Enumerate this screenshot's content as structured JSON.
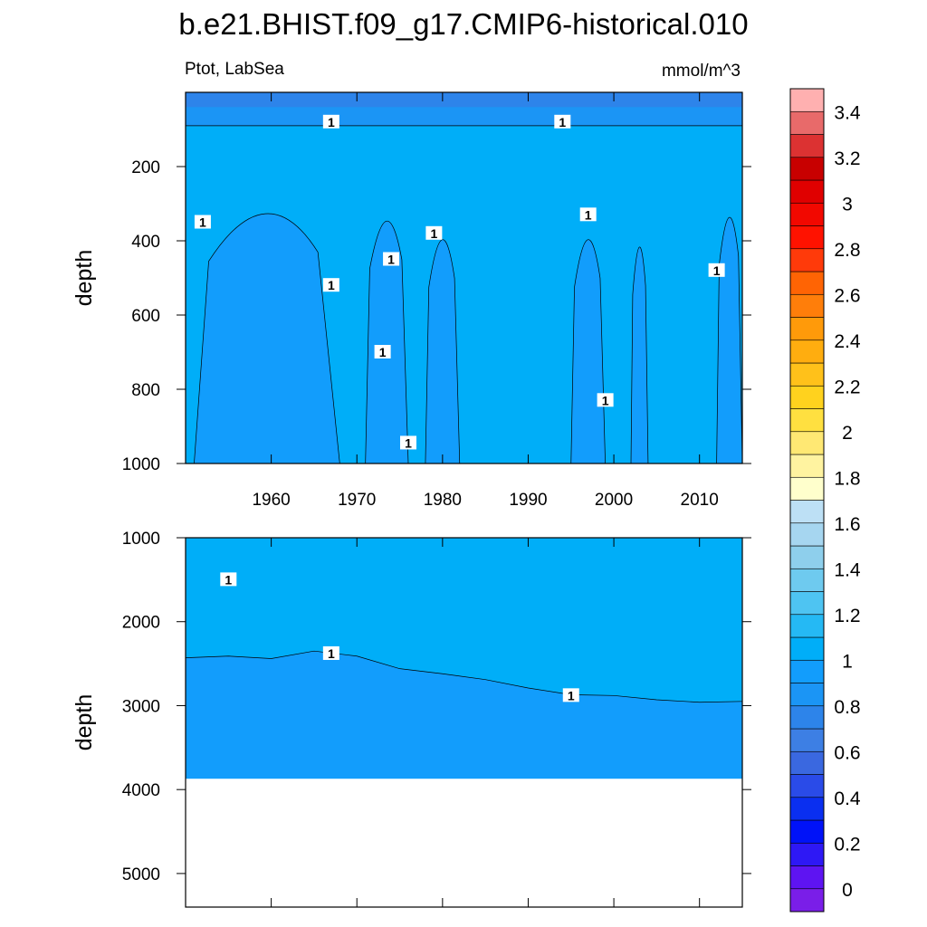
{
  "chart_data": {
    "type": "heatmap",
    "title": "b.e21.BHIST.f09_g17.CMIP6-historical.010",
    "left_label": "Ptot, LabSea",
    "right_label": "mmol/m^3",
    "contour_label": "1",
    "x_range": [
      1950,
      2015
    ],
    "x_ticks": [
      1960,
      1970,
      1980,
      1990,
      2000,
      2010
    ],
    "top_panel": {
      "ylabel": "depth",
      "ylim": [
        0,
        1000
      ],
      "y_ticks": [
        200,
        400,
        600,
        800,
        1000
      ],
      "surface_layer": {
        "depth_top": 0,
        "depth_bottom": 40,
        "value": 0.75
      },
      "upper_band": {
        "depth_top": 40,
        "depth_bottom": 90,
        "value": 0.85
      },
      "background_value": 1.05,
      "regions_below_1": [
        {
          "x_start": 1951,
          "x_end": 1968,
          "depth_top": 260,
          "value": 0.95
        },
        {
          "x_start": 1971,
          "x_end": 1976,
          "depth_top": 280,
          "value": 0.95
        },
        {
          "x_start": 1978,
          "x_end": 1982,
          "depth_top": 330,
          "value": 0.95
        },
        {
          "x_start": 1995,
          "x_end": 1999,
          "depth_top": 330,
          "value": 0.95
        },
        {
          "x_start": 2002,
          "x_end": 2004,
          "depth_top": 350,
          "value": 0.95
        },
        {
          "x_start": 2012,
          "x_end": 2015,
          "depth_top": 270,
          "value": 0.95
        }
      ]
    },
    "bottom_panel": {
      "ylabel": "depth",
      "ylim": [
        1000,
        5400
      ],
      "y_ticks": [
        1000,
        2000,
        3000,
        4000,
        5000
      ],
      "sea_floor_depth": 3870,
      "contour_depth_1": [
        {
          "x": 1950,
          "depth": 2430
        },
        {
          "x": 1955,
          "depth": 2410
        },
        {
          "x": 1960,
          "depth": 2440
        },
        {
          "x": 1965,
          "depth": 2350
        },
        {
          "x": 1970,
          "depth": 2410
        },
        {
          "x": 1975,
          "depth": 2560
        },
        {
          "x": 1980,
          "depth": 2620
        },
        {
          "x": 1985,
          "depth": 2690
        },
        {
          "x": 1990,
          "depth": 2790
        },
        {
          "x": 1995,
          "depth": 2870
        },
        {
          "x": 2000,
          "depth": 2880
        },
        {
          "x": 2005,
          "depth": 2930
        },
        {
          "x": 2010,
          "depth": 2960
        },
        {
          "x": 2015,
          "depth": 2950
        }
      ]
    },
    "colorbar": {
      "labels": [
        "0",
        "0.2",
        "0.4",
        "0.6",
        "0.8",
        "1",
        "1.2",
        "1.4",
        "1.6",
        "1.8",
        "2",
        "2.2",
        "2.4",
        "2.6",
        "2.8",
        "3",
        "3.2",
        "3.4"
      ],
      "colors": [
        "#7a1ee8",
        "#5e14f2",
        "#2e18f5",
        "#0012f8",
        "#0a2ff0",
        "#2a4be8",
        "#3a68e0",
        "#3d7fe4",
        "#2d84ea",
        "#1b95f5",
        "#129dfc",
        "#00aef8",
        "#25b9f4",
        "#4ec4f2",
        "#6ecaef",
        "#8ecfec",
        "#a6d6f0",
        "#bde0f5",
        "#ffffcc",
        "#fff3a0",
        "#ffe873",
        "#ffe040",
        "#ffd21e",
        "#ffc11a",
        "#ffad0f",
        "#ff9a0a",
        "#ff7e0a",
        "#ff6404",
        "#ff3a0a",
        "#ff1200",
        "#f20800",
        "#e00000",
        "#c80000",
        "#dc3232",
        "#e86a6a",
        "#ffb0b0"
      ]
    }
  }
}
